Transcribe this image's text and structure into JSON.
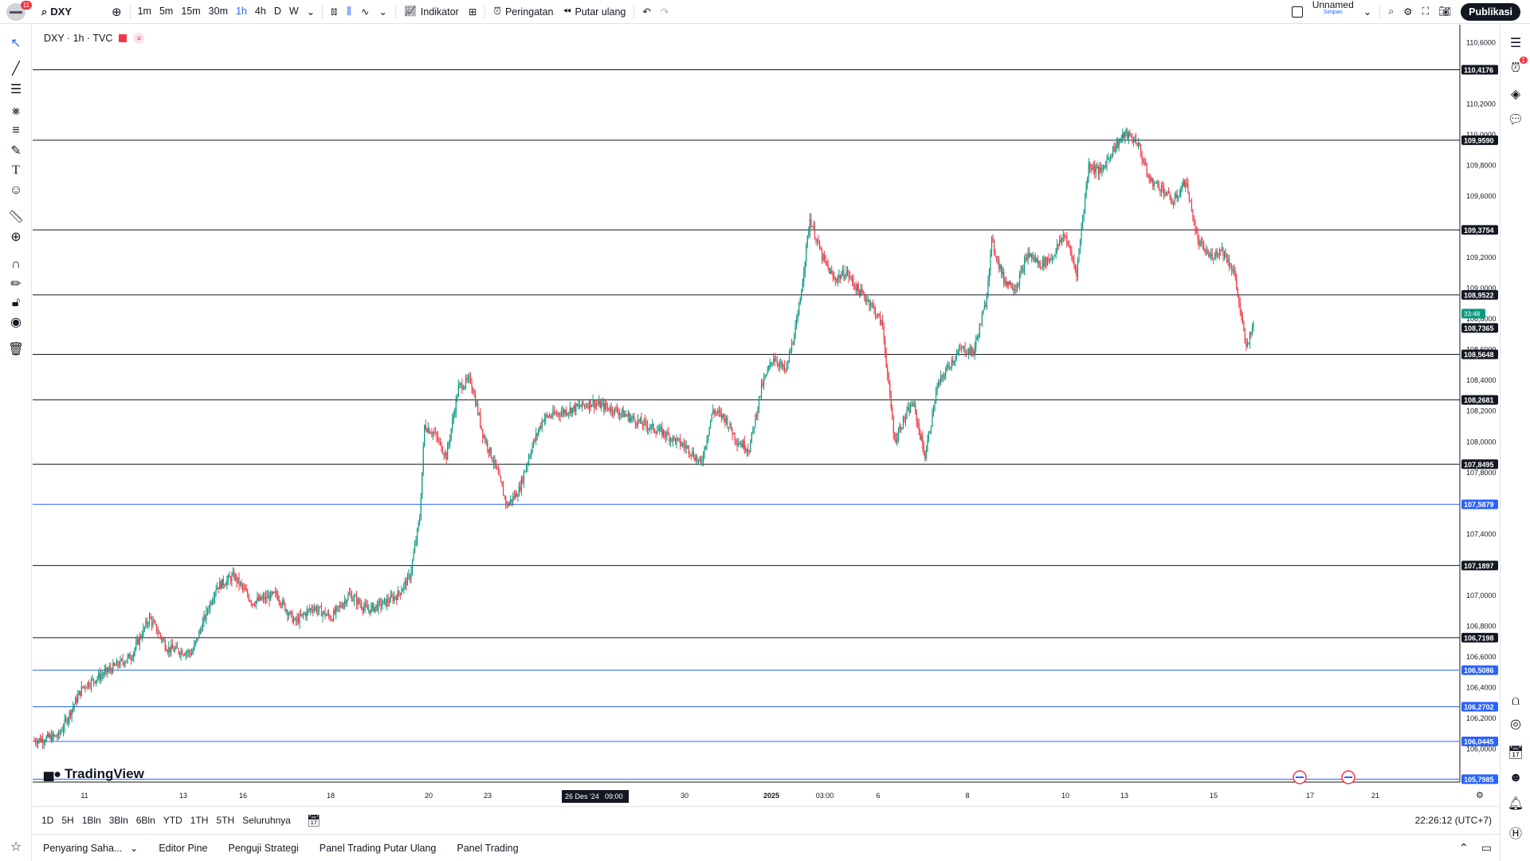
{
  "topbar": {
    "notif_count": "11",
    "symbol": "DXY",
    "timeframes": [
      "1m",
      "5m",
      "15m",
      "30m",
      "1h",
      "4h",
      "D",
      "W"
    ],
    "active_timeframe": "1h",
    "indicators_label": "Indikator",
    "alerts_label": "Peringatan",
    "replay_label": "Putar ulang",
    "layout_name": "Unnamed",
    "layout_sub": "Simpan",
    "publish_label": "Publikasi"
  },
  "legend": {
    "title": "DXY · 1h · TVC",
    "eq": "≡"
  },
  "logo": {
    "text": "TradingView"
  },
  "right_badge": "1",
  "chart_data": {
    "type": "candlestick",
    "symbol": "DXY",
    "interval": "1h",
    "ylim": [
      105.79,
      110.68
    ],
    "price_ticks": [
      "110,6000",
      "110,2000",
      "110,0000",
      "109,8000",
      "109,6000",
      "109,2000",
      "109,0000",
      "108,8000",
      "108,6000",
      "108,4000",
      "108,2000",
      "108,0000",
      "107,8000",
      "107,4000",
      "107,0000",
      "106,8000",
      "106,6000",
      "106,4000",
      "106,2000",
      "106,0000"
    ],
    "price_tick_values": [
      110.6,
      110.2,
      110.0,
      109.8,
      109.6,
      109.2,
      109.0,
      108.8,
      108.6,
      108.4,
      108.2,
      108.0,
      107.8,
      107.4,
      107.0,
      106.8,
      106.6,
      106.4,
      106.2,
      106.0
    ],
    "levels": [
      {
        "label": "110,4176",
        "value": 110.4176,
        "color": "#131722"
      },
      {
        "label": "109,9590",
        "value": 109.959,
        "color": "#131722"
      },
      {
        "label": "109,3754",
        "value": 109.3754,
        "color": "#131722"
      },
      {
        "label": "108,9522",
        "value": 108.9522,
        "color": "#131722"
      },
      {
        "label": "108,5648",
        "value": 108.5648,
        "color": "#131722"
      },
      {
        "label": "108,2681",
        "value": 108.2681,
        "color": "#131722"
      },
      {
        "label": "107,8495",
        "value": 107.8495,
        "color": "#131722"
      },
      {
        "label": "107,5879",
        "value": 107.5879,
        "color": "#2962ff"
      },
      {
        "label": "107,1897",
        "value": 107.1897,
        "color": "#131722"
      },
      {
        "label": "106,7198",
        "value": 106.7198,
        "color": "#131722"
      },
      {
        "label": "106,5086",
        "value": 106.5086,
        "color": "#2962ff"
      },
      {
        "label": "106,2702",
        "value": 106.2702,
        "color": "#2962ff"
      },
      {
        "label": "106,0445",
        "value": 106.0445,
        "color": "#2962ff"
      },
      {
        "label": "105,7985",
        "value": 105.7985,
        "color": "#2962ff"
      }
    ],
    "current_price_label": "108,7365",
    "current_price": 108.7365,
    "countdown": "33:48",
    "x_labels": [
      "11",
      "13",
      "16",
      "18",
      "20",
      "23",
      "30",
      "2025",
      "03:00",
      "6",
      "8",
      "10",
      "13",
      "15",
      "17",
      "21"
    ],
    "crosshair_date": "26 Des '24",
    "crosshair_time": "09:00",
    "anchors": [
      [
        0,
        106.05
      ],
      [
        20,
        106.08
      ],
      [
        40,
        106.4
      ],
      [
        60,
        106.5
      ],
      [
        80,
        106.6
      ],
      [
        95,
        106.85
      ],
      [
        110,
        106.65
      ],
      [
        130,
        106.62
      ],
      [
        150,
        107.05
      ],
      [
        165,
        107.12
      ],
      [
        180,
        106.95
      ],
      [
        200,
        107.0
      ],
      [
        215,
        106.82
      ],
      [
        230,
        106.92
      ],
      [
        245,
        106.85
      ],
      [
        260,
        107.0
      ],
      [
        275,
        106.9
      ],
      [
        290,
        106.95
      ],
      [
        300,
        107.0
      ],
      [
        310,
        107.12
      ],
      [
        318,
        107.5
      ],
      [
        322,
        108.1
      ],
      [
        330,
        108.05
      ],
      [
        340,
        107.9
      ],
      [
        350,
        108.35
      ],
      [
        360,
        108.4
      ],
      [
        370,
        108.05
      ],
      [
        380,
        107.85
      ],
      [
        390,
        107.58
      ],
      [
        400,
        107.68
      ],
      [
        410,
        107.95
      ],
      [
        420,
        108.15
      ],
      [
        440,
        108.2
      ],
      [
        460,
        108.25
      ],
      [
        480,
        108.2
      ],
      [
        500,
        108.12
      ],
      [
        520,
        108.05
      ],
      [
        540,
        107.95
      ],
      [
        550,
        107.85
      ],
      [
        560,
        108.2
      ],
      [
        570,
        108.15
      ],
      [
        580,
        108.0
      ],
      [
        590,
        107.95
      ],
      [
        600,
        108.35
      ],
      [
        610,
        108.55
      ],
      [
        620,
        108.45
      ],
      [
        630,
        108.8
      ],
      [
        640,
        109.45
      ],
      [
        650,
        109.2
      ],
      [
        660,
        109.05
      ],
      [
        670,
        109.1
      ],
      [
        680,
        108.98
      ],
      [
        690,
        108.9
      ],
      [
        700,
        108.75
      ],
      [
        705,
        108.35
      ],
      [
        710,
        108.0
      ],
      [
        715,
        108.1
      ],
      [
        725,
        108.25
      ],
      [
        735,
        107.9
      ],
      [
        745,
        108.35
      ],
      [
        755,
        108.5
      ],
      [
        765,
        108.6
      ],
      [
        775,
        108.58
      ],
      [
        785,
        108.9
      ],
      [
        790,
        109.3
      ],
      [
        800,
        109.05
      ],
      [
        810,
        109.0
      ],
      [
        820,
        109.22
      ],
      [
        830,
        109.15
      ],
      [
        840,
        109.2
      ],
      [
        850,
        109.35
      ],
      [
        860,
        109.1
      ],
      [
        870,
        109.8
      ],
      [
        880,
        109.75
      ],
      [
        890,
        109.9
      ],
      [
        900,
        110.0
      ],
      [
        910,
        109.95
      ],
      [
        920,
        109.7
      ],
      [
        930,
        109.65
      ],
      [
        940,
        109.55
      ],
      [
        950,
        109.7
      ],
      [
        960,
        109.3
      ],
      [
        970,
        109.2
      ],
      [
        980,
        109.25
      ],
      [
        990,
        109.1
      ],
      [
        1000,
        108.6
      ],
      [
        1005,
        108.75
      ]
    ]
  },
  "range": {
    "items": [
      "1D",
      "5H",
      "1Bln",
      "3Bln",
      "6Bln",
      "YTD",
      "1TH",
      "5TH",
      "Seluruhnya"
    ],
    "clock": "22:26:12 (UTC+7)"
  },
  "panels": {
    "tabs": [
      "Penyaring Saha...",
      "Editor Pine",
      "Penguji Strategi",
      "Panel Trading Putar Ulang",
      "Panel Trading"
    ]
  }
}
